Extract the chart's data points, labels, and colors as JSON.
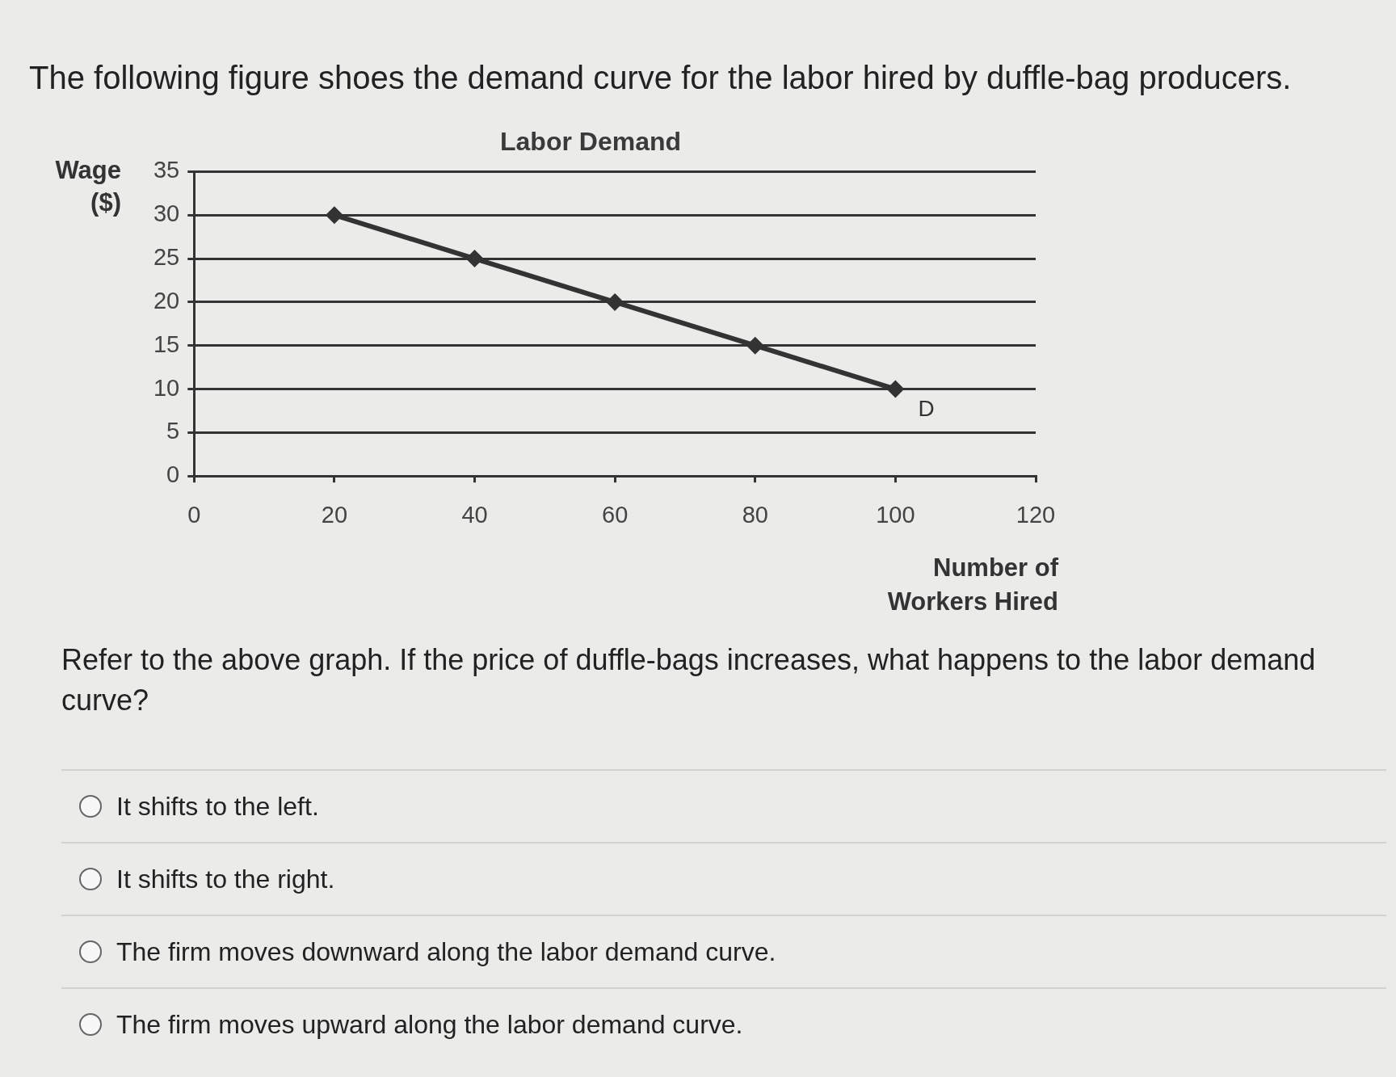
{
  "chart_data": {
    "type": "line",
    "title": "Labor Demand",
    "xlabel": "Number of Workers Hired",
    "ylabel": "Wage ($)",
    "x": [
      20,
      40,
      60,
      80,
      100
    ],
    "values": [
      30,
      25,
      20,
      15,
      10
    ],
    "color": "#333333",
    "xlim": [
      0,
      120
    ],
    "xticks": [
      0,
      20,
      40,
      60,
      80,
      100,
      120
    ],
    "ylim": [
      0,
      35
    ],
    "yticks": [
      0,
      5,
      10,
      15,
      20,
      25,
      30,
      35
    ],
    "grid": "y",
    "legend": false,
    "marker": "diamond",
    "line_style": "solid",
    "annotations": [
      "The following figure shoes the demand curve for the labor hired by duffle-bag producers.",
      "Refer to the above graph. If the price of duffle-bags increases, what happens to the labor demand curve?",
      "It shifts to the left.",
      "It shifts to the right.",
      "The firm moves downward along the labor demand curve.",
      "The firm moves upward along the labor demand curve.",
      {
        "text": "D",
        "x": 100,
        "y": 10
      }
    ]
  }
}
